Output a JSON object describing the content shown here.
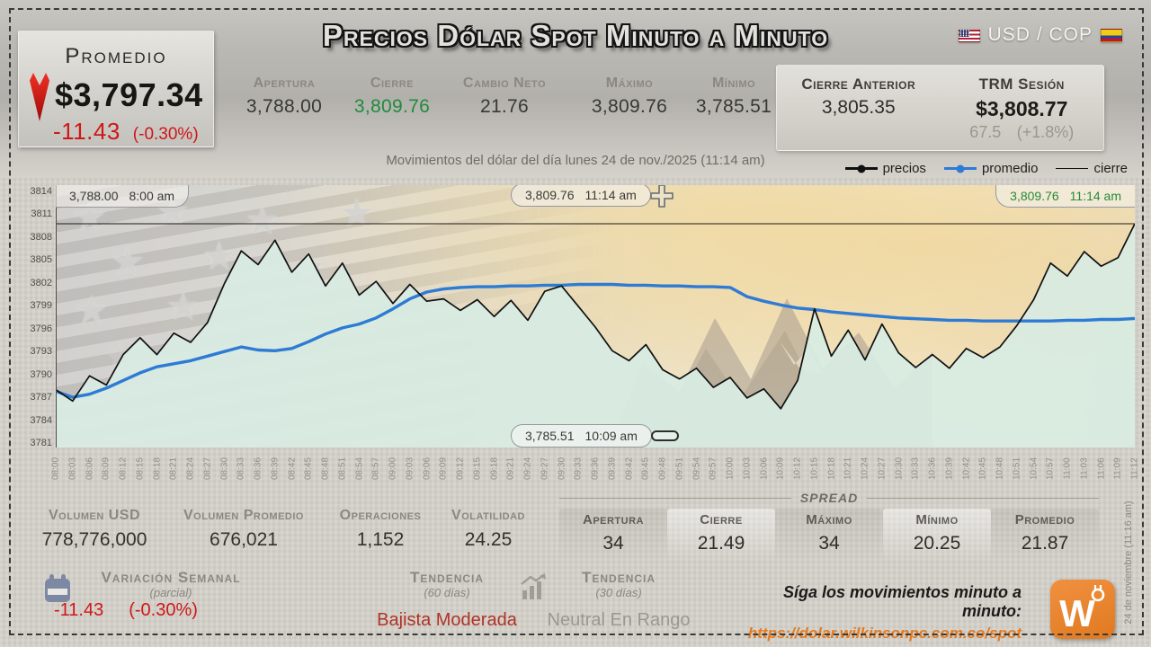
{
  "colors": {
    "down_red": "#cf1717",
    "up_green": "#1f8b3d",
    "promedio_blue": "#2d7bd4",
    "precios_black": "#101010",
    "orange": "#e67a1e",
    "bajista_red": "#b03226",
    "neutral_gray": "#9b9894",
    "area_mint": "#d8ebe1"
  },
  "header": {
    "promedio": {
      "label": "Promedio",
      "value": "$3,797.34",
      "change": "-11.43",
      "change_pct": "(-0.30%)"
    },
    "title": "Precios Dólar Spot Minuto a Minuto",
    "pair": "USD / COP",
    "stats": [
      {
        "label": "Apertura",
        "value": "3,788.00"
      },
      {
        "label": "Cierre",
        "value": "3,809.76",
        "color": "green"
      },
      {
        "label": "Cambio Neto",
        "value": "21.76"
      },
      {
        "label": "Máximo",
        "value": "3,809.76"
      },
      {
        "label": "Mínimo",
        "value": "3,785.51"
      }
    ],
    "cierre_anterior": {
      "label": "Cierre Anterior",
      "value": "3,805.35"
    },
    "trm": {
      "label": "TRM Sesión",
      "value": "$3,808.77",
      "delta": "67.5",
      "delta_pct": "(+1.8%)"
    },
    "subtitle": "Movimientos del dólar del día lunes 24 de nov./2025 (11:14 am)",
    "legend": [
      {
        "label": "precios",
        "color": "#101010",
        "swatch": "dot-line"
      },
      {
        "label": "promedio",
        "color": "#2d7bd4",
        "swatch": "dot-line"
      },
      {
        "label": "cierre",
        "color": "#101010",
        "swatch": "thin-line"
      }
    ]
  },
  "chart_data": {
    "type": "line",
    "title": "Precios Dólar Spot Minuto a Minuto",
    "xlabel": "",
    "ylabel": "",
    "ylim": [
      3781,
      3814
    ],
    "yticks": [
      3814,
      3811,
      3808,
      3805,
      3802,
      3799,
      3796,
      3793,
      3790,
      3787,
      3784,
      3781
    ],
    "grid": false,
    "legend_position": "top-right",
    "x": [
      "08:00",
      "08:03",
      "08:06",
      "08:09",
      "08:12",
      "08:15",
      "08:18",
      "08:21",
      "08:24",
      "08:27",
      "08:30",
      "08:33",
      "08:36",
      "08:39",
      "08:42",
      "08:45",
      "08:48",
      "08:51",
      "08:54",
      "08:57",
      "09:00",
      "09:03",
      "09:06",
      "09:09",
      "09:12",
      "09:15",
      "09:18",
      "09:21",
      "09:24",
      "09:27",
      "09:30",
      "09:33",
      "09:36",
      "09:39",
      "09:42",
      "09:45",
      "09:48",
      "09:51",
      "09:54",
      "09:57",
      "10:00",
      "10:03",
      "10:06",
      "10:09",
      "10:12",
      "10:15",
      "10:18",
      "10:21",
      "10:24",
      "10:27",
      "10:30",
      "10:33",
      "10:36",
      "10:39",
      "10:42",
      "10:45",
      "10:48",
      "10:51",
      "10:54",
      "10:57",
      "11:00",
      "11:03",
      "11:06",
      "11:09",
      "11:12"
    ],
    "series": [
      {
        "name": "precios",
        "color": "#101010",
        "values": [
          3788.0,
          3786.5,
          3789.8,
          3788.6,
          3792.6,
          3794.8,
          3792.6,
          3795.4,
          3794.2,
          3796.8,
          3801.9,
          3806.2,
          3804.4,
          3807.6,
          3803.4,
          3805.8,
          3801.6,
          3804.6,
          3800.4,
          3802.2,
          3799.3,
          3801.8,
          3799.6,
          3799.9,
          3798.4,
          3799.8,
          3797.6,
          3799.7,
          3797.1,
          3800.9,
          3801.6,
          3798.9,
          3796.2,
          3793.1,
          3791.8,
          3793.9,
          3790.6,
          3789.4,
          3790.8,
          3788.3,
          3789.6,
          3786.9,
          3788.1,
          3785.5,
          3789.2,
          3798.6,
          3792.4,
          3795.8,
          3791.9,
          3796.6,
          3792.8,
          3790.9,
          3792.6,
          3790.8,
          3793.4,
          3792.2,
          3793.6,
          3796.4,
          3799.8,
          3804.6,
          3802.9,
          3806.1,
          3804.2,
          3805.3,
          3809.76
        ]
      },
      {
        "name": "promedio",
        "color": "#2d7bd4",
        "values": [
          3787.8,
          3787.0,
          3787.4,
          3788.2,
          3789.2,
          3790.2,
          3791.0,
          3791.4,
          3791.8,
          3792.4,
          3793.0,
          3793.6,
          3793.2,
          3793.1,
          3793.4,
          3794.3,
          3795.3,
          3796.1,
          3796.6,
          3797.4,
          3798.6,
          3799.9,
          3800.8,
          3801.2,
          3801.4,
          3801.5,
          3801.5,
          3801.6,
          3801.6,
          3801.7,
          3801.7,
          3801.8,
          3801.8,
          3801.8,
          3801.7,
          3801.7,
          3801.6,
          3801.6,
          3801.5,
          3801.5,
          3801.4,
          3800.2,
          3799.6,
          3799.1,
          3798.7,
          3798.5,
          3798.2,
          3798.0,
          3797.8,
          3797.6,
          3797.4,
          3797.3,
          3797.2,
          3797.1,
          3797.1,
          3797.0,
          3797.0,
          3797.0,
          3797.0,
          3797.0,
          3797.1,
          3797.1,
          3797.2,
          3797.2,
          3797.34
        ]
      }
    ],
    "cierre_line": 3809.76,
    "annotations": [
      {
        "value": "3,788.00",
        "time": "8:00 am",
        "pos": "top-left"
      },
      {
        "value": "3,809.76",
        "time": "11:14 am",
        "pos": "top-center"
      },
      {
        "value": "3,809.76",
        "time": "11:14 am",
        "pos": "top-right",
        "color": "#278a3c"
      },
      {
        "value": "3,785.51",
        "time": "10:09 am",
        "pos": "bottom-center"
      }
    ]
  },
  "footer": {
    "stats": [
      {
        "label": "Volumen USD",
        "value": "778,776,000"
      },
      {
        "label": "Volumen Promedio",
        "value": "676,021"
      },
      {
        "label": "Operaciones",
        "value": "1,152"
      },
      {
        "label": "Volatilidad",
        "value": "24.25"
      }
    ],
    "spread": {
      "title": "SPREAD",
      "cols": [
        {
          "label": "Apertura",
          "value": "34"
        },
        {
          "label": "Cierre",
          "value": "21.49"
        },
        {
          "label": "Máximo",
          "value": "34"
        },
        {
          "label": "Mínimo",
          "value": "20.25"
        },
        {
          "label": "Promedio",
          "value": "21.87"
        }
      ]
    },
    "variacion": {
      "label": "Variación Semanal",
      "sub": "(parcial)",
      "value": "-11.43",
      "pct": "(-0.30%)"
    },
    "tendencia60": {
      "label": "Tendencia",
      "sub": "(60 días)",
      "value": "Bajista Moderada"
    },
    "tendencia30": {
      "label": "Tendencia",
      "sub": "(30 días)",
      "value": "Neutral En Rango"
    },
    "cta": {
      "text": "Síga los movimientos minuto a minuto:",
      "url": "https://dolar.wilkinsonpc.com.co/spot"
    },
    "logo_letter": "W",
    "side_note": "24 de noviembre (11:16 am)"
  },
  "icons": [
    "down-arrow-icon",
    "us-flag-icon",
    "colombia-flag-icon",
    "crosshair-icon",
    "ellipse-icon",
    "calendar-icon",
    "trend-chart-icon",
    "wilkinsonpc-logo"
  ]
}
